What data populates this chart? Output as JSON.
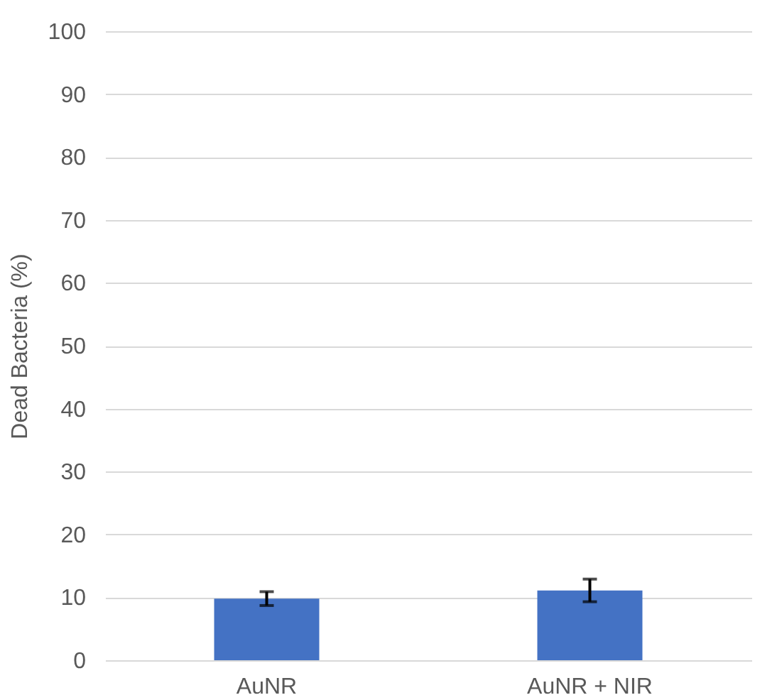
{
  "chart_data": {
    "type": "bar",
    "ylabel": "Dead Bacteria (%)",
    "categories": [
      "AuNR",
      "AuNR + NIR"
    ],
    "values": [
      9.8,
      11.1
    ],
    "errors": [
      1.1,
      1.8
    ],
    "color": "#4472c4",
    "ylim": [
      0,
      100
    ],
    "yticks": [
      0,
      10,
      20,
      30,
      40,
      50,
      60,
      70,
      80,
      90,
      100
    ],
    "grid": "y"
  }
}
